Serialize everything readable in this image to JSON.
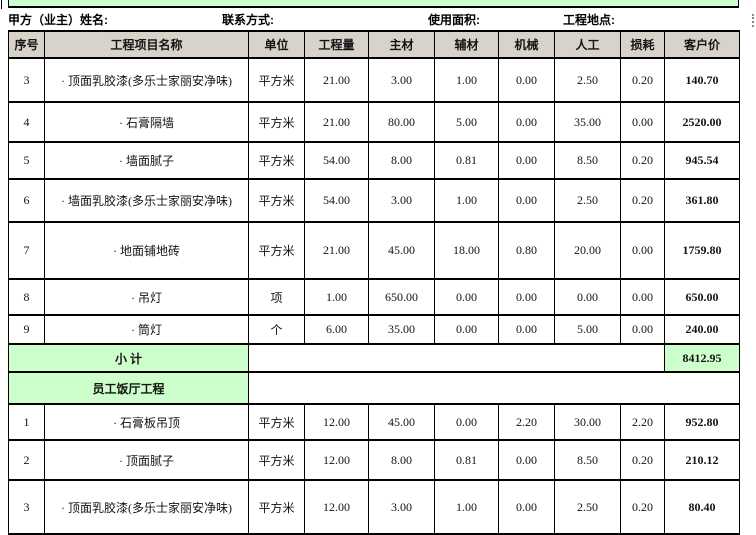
{
  "info_bar": {
    "owner_label": "甲方（业主）姓名:",
    "contact_label": "联系方式:",
    "area_label": "使用面积:",
    "location_label": "工程地点:"
  },
  "table": {
    "columns": [
      "序号",
      "工程项目名称",
      "单位",
      "工程量",
      "主材",
      "辅材",
      "机械",
      "人工",
      "损耗",
      "客户价"
    ],
    "rows": [
      {
        "type": "item",
        "no": "3",
        "name": "· 顶面乳胶漆(多乐士家丽安净味)",
        "unit": "平方米",
        "qty": "21.00",
        "main": "3.00",
        "aux": "1.00",
        "mach": "0.00",
        "labor": "2.50",
        "loss": "0.20",
        "price": "140.70"
      },
      {
        "type": "item",
        "no": "4",
        "name": "· 石膏隔墙",
        "unit": "平方米",
        "qty": "21.00",
        "main": "80.00",
        "aux": "5.00",
        "mach": "0.00",
        "labor": "35.00",
        "loss": "0.00",
        "price": "2520.00"
      },
      {
        "type": "item",
        "no": "5",
        "name": "· 墙面腻子",
        "unit": "平方米",
        "qty": "54.00",
        "main": "8.00",
        "aux": "0.81",
        "mach": "0.00",
        "labor": "8.50",
        "loss": "0.20",
        "price": "945.54"
      },
      {
        "type": "item",
        "no": "6",
        "name": "· 墙面乳胶漆(多乐士家丽安净味)",
        "unit": "平方米",
        "qty": "54.00",
        "main": "3.00",
        "aux": "1.00",
        "mach": "0.00",
        "labor": "2.50",
        "loss": "0.20",
        "price": "361.80"
      },
      {
        "type": "item",
        "no": "7",
        "name": "· 地面铺地砖",
        "unit": "平方米",
        "qty": "21.00",
        "main": "45.00",
        "aux": "18.00",
        "mach": "0.80",
        "labor": "20.00",
        "loss": "0.00",
        "price": "1759.80"
      },
      {
        "type": "item",
        "no": "8",
        "name": "· 吊灯",
        "unit": "项",
        "qty": "1.00",
        "main": "650.00",
        "aux": "0.00",
        "mach": "0.00",
        "labor": "0.00",
        "loss": "0.00",
        "price": "650.00"
      },
      {
        "type": "item",
        "no": "9",
        "name": "· 筒灯",
        "unit": "个",
        "qty": "6.00",
        "main": "35.00",
        "aux": "0.00",
        "mach": "0.00",
        "labor": "5.00",
        "loss": "0.00",
        "price": "240.00"
      },
      {
        "type": "subtotal",
        "label": "小  计",
        "value": "8412.95"
      },
      {
        "type": "section",
        "label": "员工饭厅工程"
      },
      {
        "type": "item",
        "no": "1",
        "name": "· 石膏板吊顶",
        "unit": "平方米",
        "qty": "12.00",
        "main": "45.00",
        "aux": "0.00",
        "mach": "2.20",
        "labor": "30.00",
        "loss": "2.20",
        "price": "952.80"
      },
      {
        "type": "item",
        "no": "2",
        "name": "· 顶面腻子",
        "unit": "平方米",
        "qty": "12.00",
        "main": "8.00",
        "aux": "0.81",
        "mach": "0.00",
        "labor": "8.50",
        "loss": "0.20",
        "price": "210.12"
      },
      {
        "type": "item",
        "no": "3",
        "name": "· 顶面乳胶漆(多乐士家丽安净味)",
        "unit": "平方米",
        "qty": "12.00",
        "main": "3.00",
        "aux": "1.00",
        "mach": "0.00",
        "labor": "2.50",
        "loss": "0.20",
        "price": "80.40"
      }
    ]
  },
  "colors": {
    "section_green": "#ccffcc",
    "header_gray": "#d7d3cb",
    "grid_line": "#000000"
  }
}
